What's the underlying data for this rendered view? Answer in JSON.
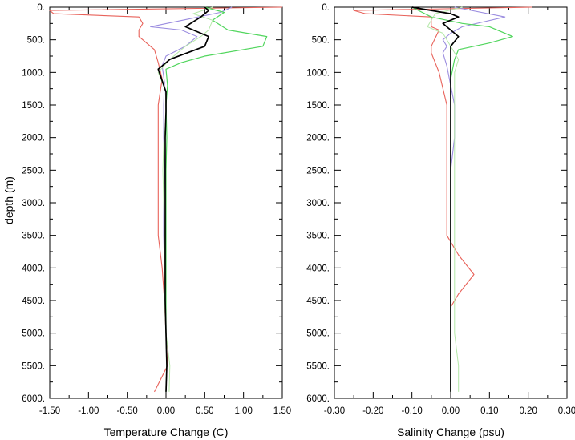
{
  "ylabel": "depth (m)",
  "chart_data": [
    {
      "type": "line",
      "xlabel": "Temperature Change (C)",
      "ylabel": "depth (m)",
      "xlim": [
        -1.5,
        1.5
      ],
      "ylim": [
        6000,
        0
      ],
      "y_inverted": true,
      "grid": false,
      "x_ticks": [
        "-1.50",
        "-1.00",
        "-0.50",
        "0.00",
        "0.50",
        "1.00",
        "1.50"
      ],
      "x_tick_values": [
        -1.5,
        -1.0,
        -0.5,
        0.0,
        0.5,
        1.0,
        1.5
      ],
      "y_ticks": [
        "0.",
        "500.",
        "1000.",
        "1500.",
        "2000.",
        "2500.",
        "3000.",
        "3500.",
        "4000.",
        "4500.",
        "5000.",
        "5500.",
        "6000."
      ],
      "y_tick_values": [
        0,
        500,
        1000,
        1500,
        2000,
        2500,
        3000,
        3500,
        4000,
        4500,
        5000,
        5500,
        6000
      ],
      "series": [
        {
          "color": "#e8625a",
          "width": 1.1,
          "points": [
            [
              1.6,
              0
            ],
            [
              -1.5,
              50
            ],
            [
              -1.45,
              100
            ],
            [
              -0.35,
              150
            ],
            [
              -0.3,
              250
            ],
            [
              -0.35,
              350
            ],
            [
              -0.35,
              450
            ],
            [
              -0.15,
              650
            ],
            [
              -0.1,
              850
            ],
            [
              -0.05,
              1100
            ],
            [
              -0.1,
              1500
            ],
            [
              -0.1,
              2000
            ],
            [
              -0.1,
              2500
            ],
            [
              -0.1,
              3000
            ],
            [
              -0.1,
              3500
            ],
            [
              -0.05,
              4000
            ],
            [
              -0.02,
              4500
            ],
            [
              0.0,
              5000
            ],
            [
              0.02,
              5500
            ],
            [
              -0.15,
              5900
            ]
          ]
        },
        {
          "color": "#9c8ee0",
          "width": 1.1,
          "points": [
            [
              0.85,
              0
            ],
            [
              0.7,
              80
            ],
            [
              0.3,
              180
            ],
            [
              -0.2,
              300
            ],
            [
              0.2,
              350
            ],
            [
              0.4,
              450
            ],
            [
              0.25,
              600
            ],
            [
              0.0,
              750
            ],
            [
              -0.05,
              900
            ],
            [
              -0.02,
              1150
            ],
            [
              -0.03,
              1500
            ],
            [
              -0.03,
              2000
            ],
            [
              -0.02,
              2500
            ],
            [
              -0.03,
              3000
            ],
            [
              -0.03,
              3500
            ],
            [
              -0.02,
              4000
            ],
            [
              -0.01,
              4500
            ],
            [
              0.0,
              5000
            ],
            [
              0.01,
              5500
            ],
            [
              0.0,
              5900
            ]
          ]
        },
        {
          "color": "#52d65e",
          "width": 1.2,
          "points": [
            [
              0.5,
              0
            ],
            [
              0.75,
              80
            ],
            [
              0.6,
              200
            ],
            [
              0.8,
              350
            ],
            [
              1.3,
              450
            ],
            [
              1.25,
              600
            ],
            [
              0.5,
              750
            ],
            [
              0.2,
              850
            ],
            [
              0.0,
              950
            ],
            [
              0.02,
              1200
            ],
            [
              0.0,
              1500
            ],
            [
              0.01,
              2000
            ],
            [
              0.0,
              2500
            ],
            [
              0.0,
              3000
            ],
            [
              0.0,
              3500
            ],
            [
              0.0,
              4000
            ],
            [
              0.0,
              4500
            ],
            [
              0.0,
              5000
            ],
            [
              0.01,
              5500
            ],
            [
              0.0,
              5900
            ]
          ]
        },
        {
          "color": "#b4e8a8",
          "width": 1.0,
          "points": [
            [
              0.6,
              0
            ],
            [
              0.35,
              100
            ],
            [
              0.6,
              200
            ],
            [
              0.55,
              350
            ],
            [
              0.45,
              450
            ],
            [
              0.25,
              600
            ],
            [
              0.05,
              800
            ],
            [
              -0.1,
              1000
            ],
            [
              0.0,
              1300
            ],
            [
              0.0,
              1700
            ],
            [
              -0.03,
              2100
            ],
            [
              -0.04,
              2500
            ],
            [
              -0.03,
              3000
            ],
            [
              -0.02,
              3500
            ],
            [
              -0.02,
              4000
            ],
            [
              -0.02,
              4500
            ],
            [
              0.0,
              5000
            ],
            [
              0.05,
              5500
            ],
            [
              0.04,
              5900
            ]
          ]
        },
        {
          "color": "#000000",
          "width": 1.7,
          "points": [
            [
              0.5,
              0
            ],
            [
              0.55,
              50
            ],
            [
              0.45,
              150
            ],
            [
              0.25,
              300
            ],
            [
              0.55,
              450
            ],
            [
              0.5,
              600
            ],
            [
              0.05,
              800
            ],
            [
              -0.1,
              950
            ],
            [
              0.0,
              1300
            ],
            [
              0.0,
              1600
            ],
            [
              -0.01,
              2000
            ],
            [
              -0.01,
              2500
            ],
            [
              -0.01,
              3000
            ],
            [
              -0.01,
              3500
            ],
            [
              -0.01,
              4000
            ],
            [
              -0.01,
              4500
            ],
            [
              0.0,
              5000
            ],
            [
              0.01,
              5500
            ],
            [
              0.0,
              5900
            ]
          ]
        }
      ]
    },
    {
      "type": "line",
      "xlabel": "Salinity Change (psu)",
      "ylabel": "",
      "xlim": [
        -0.3,
        0.3
      ],
      "ylim": [
        6000,
        0
      ],
      "y_inverted": true,
      "grid": false,
      "x_ticks": [
        "-0.30",
        "-0.20",
        "-0.10",
        "0.00",
        "0.10",
        "0.20",
        "0.30"
      ],
      "x_tick_values": [
        -0.3,
        -0.2,
        -0.1,
        0.0,
        0.1,
        0.2,
        0.3
      ],
      "y_ticks": [
        "0.",
        "500.",
        "1000.",
        "1500.",
        "2000.",
        "2500.",
        "3000.",
        "3500.",
        "4000.",
        "4500.",
        "5000.",
        "5500.",
        "6000."
      ],
      "y_tick_values": [
        0,
        500,
        1000,
        1500,
        2000,
        2500,
        3000,
        3500,
        4000,
        4500,
        5000,
        5500,
        6000
      ],
      "series": [
        {
          "color": "#e8625a",
          "width": 1.1,
          "points": [
            [
              0.21,
              0
            ],
            [
              -0.25,
              50
            ],
            [
              -0.22,
              100
            ],
            [
              -0.05,
              150
            ],
            [
              -0.05,
              300
            ],
            [
              -0.03,
              350
            ],
            [
              -0.05,
              600
            ],
            [
              -0.05,
              700
            ],
            [
              -0.03,
              1000
            ],
            [
              -0.01,
              1500
            ],
            [
              -0.01,
              2000
            ],
            [
              -0.01,
              2500
            ],
            [
              -0.01,
              3000
            ],
            [
              -0.01,
              3500
            ],
            [
              0.02,
              3800
            ],
            [
              0.06,
              4100
            ],
            [
              0.02,
              4400
            ],
            [
              0.0,
              4600
            ],
            [
              0.0,
              5000
            ],
            [
              0.0,
              5500
            ],
            [
              0.0,
              5900
            ]
          ]
        },
        {
          "color": "#9c8ee0",
          "width": 1.1,
          "points": [
            [
              0.01,
              0
            ],
            [
              0.14,
              150
            ],
            [
              0.03,
              300
            ],
            [
              0.0,
              400
            ],
            [
              -0.02,
              500
            ],
            [
              -0.01,
              600
            ],
            [
              -0.02,
              700
            ],
            [
              -0.01,
              900
            ],
            [
              0.0,
              1200
            ],
            [
              0.01,
              1500
            ],
            [
              0.01,
              2000
            ],
            [
              0.0,
              2500
            ],
            [
              0.0,
              3000
            ],
            [
              0.0,
              3500
            ],
            [
              0.0,
              4000
            ],
            [
              0.0,
              4500
            ],
            [
              0.0,
              5000
            ],
            [
              0.0,
              5500
            ],
            [
              0.0,
              5900
            ]
          ]
        },
        {
          "color": "#52d65e",
          "width": 1.2,
          "points": [
            [
              -0.1,
              0
            ],
            [
              -0.05,
              150
            ],
            [
              0.03,
              250
            ],
            [
              0.1,
              300
            ],
            [
              0.16,
              450
            ],
            [
              0.1,
              550
            ],
            [
              0.02,
              650
            ],
            [
              0.01,
              800
            ],
            [
              0.0,
              1100
            ],
            [
              0.0,
              1500
            ],
            [
              0.0,
              2000
            ],
            [
              0.0,
              2500
            ],
            [
              0.0,
              3000
            ],
            [
              0.0,
              3500
            ],
            [
              0.0,
              4000
            ],
            [
              0.0,
              4500
            ],
            [
              0.0,
              5000
            ],
            [
              0.0,
              5500
            ],
            [
              0.0,
              5900
            ]
          ]
        },
        {
          "color": "#b4e8a8",
          "width": 1.0,
          "points": [
            [
              0.03,
              0
            ],
            [
              -0.04,
              100
            ],
            [
              -0.06,
              300
            ],
            [
              -0.02,
              400
            ],
            [
              0.0,
              600
            ],
            [
              0.02,
              800
            ],
            [
              0.01,
              1000
            ],
            [
              0.01,
              1500
            ],
            [
              0.01,
              2000
            ],
            [
              0.01,
              2500
            ],
            [
              0.01,
              3000
            ],
            [
              0.01,
              3500
            ],
            [
              0.01,
              4000
            ],
            [
              0.01,
              4500
            ],
            [
              0.01,
              5000
            ],
            [
              0.02,
              5500
            ],
            [
              0.02,
              5900
            ]
          ]
        },
        {
          "color": "#000000",
          "width": 1.7,
          "points": [
            [
              -0.1,
              0
            ],
            [
              -0.05,
              50
            ],
            [
              0.0,
              100
            ],
            [
              0.02,
              150
            ],
            [
              -0.02,
              250
            ],
            [
              0.0,
              350
            ],
            [
              0.02,
              450
            ],
            [
              0.0,
              600
            ],
            [
              0.0,
              800
            ],
            [
              0.0,
              1000
            ],
            [
              0.0,
              1500
            ],
            [
              0.0,
              2000
            ],
            [
              0.0,
              2500
            ],
            [
              0.0,
              3000
            ],
            [
              0.0,
              3500
            ],
            [
              0.0,
              4000
            ],
            [
              0.0,
              4500
            ],
            [
              0.0,
              5000
            ],
            [
              0.0,
              5500
            ],
            [
              0.0,
              5900
            ]
          ]
        }
      ]
    }
  ]
}
